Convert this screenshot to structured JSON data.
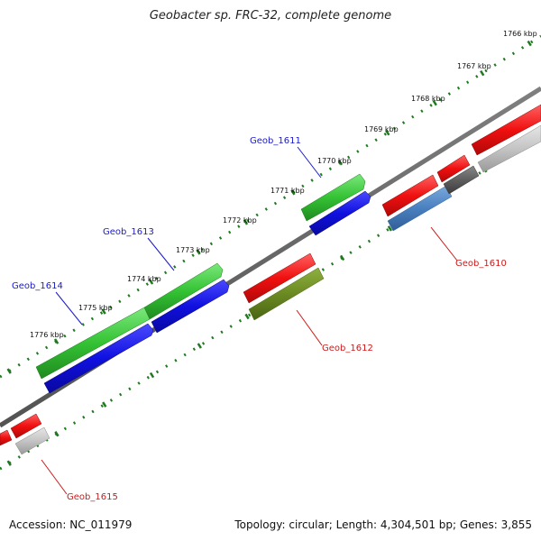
{
  "title": "Geobacter sp. FRC-32, complete genome",
  "footer": {
    "accession": "Accession: NC_011979",
    "summary": "Topology: circular; Length: 4,304,501 bp; Genes: 3,855"
  },
  "colors": {
    "backbone": "#7a7a7a",
    "tick_green": "#1f7a1f",
    "label_blue": "#1a1acc",
    "label_red": "#cc1a1a"
  },
  "scale": {
    "ticks": [
      {
        "label": "1766 kbp"
      },
      {
        "label": "1767 kbp"
      },
      {
        "label": "1768 kbp"
      },
      {
        "label": "1769 kbp"
      },
      {
        "label": "1770 kbp"
      },
      {
        "label": "1771 kbp"
      },
      {
        "label": "1772 kbp"
      },
      {
        "label": "1773 kbp"
      },
      {
        "label": "1774 kbp"
      },
      {
        "label": "1775 kbp"
      },
      {
        "label": "1776 kbp"
      }
    ]
  },
  "genes": [
    {
      "name": "Geob_1611",
      "strand": "forward",
      "color": "#1a1acc"
    },
    {
      "name": "Geob_1613",
      "strand": "forward",
      "color": "#1a1acc"
    },
    {
      "name": "Geob_1614",
      "strand": "forward",
      "color": "#1a1acc"
    },
    {
      "name": "Geob_1610",
      "strand": "reverse",
      "color": "#cc1a1a"
    },
    {
      "name": "Geob_1612",
      "strand": "reverse",
      "color": "#cc1a1a"
    },
    {
      "name": "Geob_1615",
      "strand": "reverse",
      "color": "#cc1a1a"
    }
  ]
}
